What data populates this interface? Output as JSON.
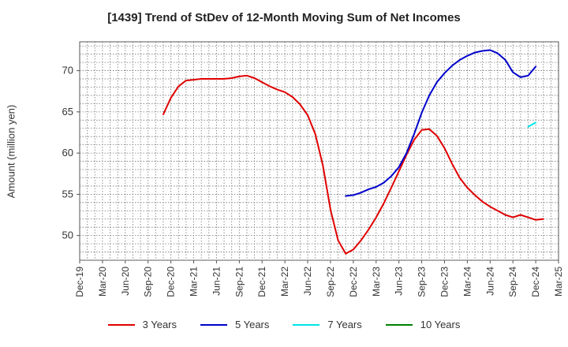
{
  "chart_data": {
    "type": "line",
    "title": "[1439]  Trend of StDev of 12-Month Moving Sum of Net Incomes",
    "ylabel": "Amount (million yen)",
    "xlabel": "",
    "x_tick_labels": [
      "Dec-19",
      "Mar-20",
      "Jun-20",
      "Sep-20",
      "Dec-20",
      "Mar-21",
      "Jun-21",
      "Sep-21",
      "Dec-21",
      "Mar-22",
      "Jun-22",
      "Sep-22",
      "Dec-22",
      "Mar-23",
      "Jun-23",
      "Sep-23",
      "Dec-23",
      "Mar-24",
      "Jun-24",
      "Sep-24",
      "Dec-24",
      "Mar-25"
    ],
    "y_ticks": [
      50,
      55,
      60,
      65,
      70
    ],
    "ylim": [
      47,
      73.5
    ],
    "grid": true,
    "legend_position": "bottom",
    "series": [
      {
        "name": "3 Years",
        "color": "#e00000",
        "points": [
          [
            "Nov-20",
            64.7
          ],
          [
            "Dec-20",
            66.7
          ],
          [
            "Jan-21",
            68.1
          ],
          [
            "Feb-21",
            68.8
          ],
          [
            "Mar-21",
            68.9
          ],
          [
            "Apr-21",
            69.0
          ],
          [
            "May-21",
            69.0
          ],
          [
            "Jun-21",
            69.0
          ],
          [
            "Jul-21",
            69.0
          ],
          [
            "Aug-21",
            69.1
          ],
          [
            "Sep-21",
            69.3
          ],
          [
            "Oct-21",
            69.4
          ],
          [
            "Nov-21",
            69.1
          ],
          [
            "Dec-21",
            68.6
          ],
          [
            "Jan-22",
            68.1
          ],
          [
            "Feb-22",
            67.7
          ],
          [
            "Mar-22",
            67.4
          ],
          [
            "Apr-22",
            66.8
          ],
          [
            "May-22",
            65.9
          ],
          [
            "Jun-22",
            64.6
          ],
          [
            "Jul-22",
            62.3
          ],
          [
            "Aug-22",
            58.5
          ],
          [
            "Sep-22",
            53.1
          ],
          [
            "Oct-22",
            49.4
          ],
          [
            "Nov-22",
            47.8
          ],
          [
            "Dec-22",
            48.3
          ],
          [
            "Jan-23",
            49.4
          ],
          [
            "Feb-23",
            50.7
          ],
          [
            "Mar-23",
            52.2
          ],
          [
            "Apr-23",
            53.9
          ],
          [
            "May-23",
            55.8
          ],
          [
            "Jun-23",
            57.8
          ],
          [
            "Jul-23",
            59.8
          ],
          [
            "Aug-23",
            61.6
          ],
          [
            "Sep-23",
            62.8
          ],
          [
            "Oct-23",
            62.9
          ],
          [
            "Nov-23",
            62.1
          ],
          [
            "Dec-23",
            60.6
          ],
          [
            "Jan-24",
            58.7
          ],
          [
            "Feb-24",
            57.0
          ],
          [
            "Mar-24",
            55.8
          ],
          [
            "Apr-24",
            54.9
          ],
          [
            "May-24",
            54.1
          ],
          [
            "Jun-24",
            53.5
          ],
          [
            "Jul-24",
            53.0
          ],
          [
            "Aug-24",
            52.5
          ],
          [
            "Sep-24",
            52.2
          ],
          [
            "Oct-24",
            52.5
          ],
          [
            "Nov-24",
            52.2
          ],
          [
            "Dec-24",
            51.9
          ],
          [
            "Jan-25",
            52.0
          ]
        ]
      },
      {
        "name": "5 Years",
        "color": "#0000cc",
        "points": [
          [
            "Nov-22",
            54.8
          ],
          [
            "Dec-22",
            54.9
          ],
          [
            "Jan-23",
            55.2
          ],
          [
            "Feb-23",
            55.6
          ],
          [
            "Mar-23",
            55.9
          ],
          [
            "Apr-23",
            56.4
          ],
          [
            "May-23",
            57.2
          ],
          [
            "Jun-23",
            58.3
          ],
          [
            "Jul-23",
            60.0
          ],
          [
            "Aug-23",
            62.3
          ],
          [
            "Sep-23",
            64.9
          ],
          [
            "Oct-23",
            67.0
          ],
          [
            "Nov-23",
            68.6
          ],
          [
            "Dec-23",
            69.7
          ],
          [
            "Jan-24",
            70.6
          ],
          [
            "Feb-24",
            71.3
          ],
          [
            "Mar-24",
            71.8
          ],
          [
            "Apr-24",
            72.2
          ],
          [
            "May-24",
            72.4
          ],
          [
            "Jun-24",
            72.5
          ],
          [
            "Jul-24",
            72.1
          ],
          [
            "Aug-24",
            71.3
          ],
          [
            "Sep-24",
            69.8
          ],
          [
            "Oct-24",
            69.2
          ],
          [
            "Nov-24",
            69.4
          ],
          [
            "Dec-24",
            70.5
          ]
        ]
      },
      {
        "name": "7 Years",
        "color": "#00e5e5",
        "points": [
          [
            "Nov-24",
            63.2
          ],
          [
            "Dec-24",
            63.7
          ]
        ]
      },
      {
        "name": "10 Years",
        "color": "#008000",
        "points": []
      }
    ]
  }
}
